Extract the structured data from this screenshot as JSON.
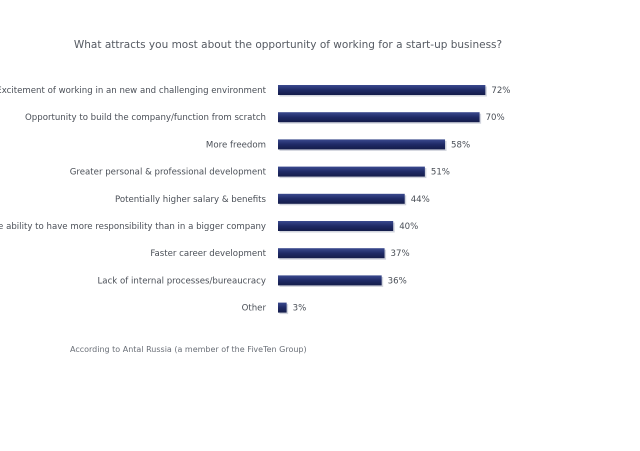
{
  "chart_data": {
    "type": "bar",
    "orientation": "horizontal",
    "title": "What attracts you most about the opportunity of working for a start-up business?",
    "categories": [
      "Excitement of working in an new and challenging environment",
      "Opportunity to build the company/function from scratch",
      "More freedom",
      "Greater personal & professional development",
      "Potentially higher salary & benefits",
      "The ability to have more responsibility than in a bigger company",
      "Faster career development",
      "Lack of internal processes/bureaucracy",
      "Other"
    ],
    "values": [
      72,
      70,
      58,
      51,
      44,
      40,
      37,
      36,
      3
    ],
    "value_labels": [
      "72%",
      "70%",
      "58%",
      "51%",
      "44%",
      "40%",
      "37%",
      "36%",
      "3%"
    ],
    "unit": "%",
    "xlim": [
      0,
      100
    ],
    "xlabel": "",
    "ylabel": "",
    "grid": false,
    "bar_color": "#1f2a66"
  },
  "source_note": "According to Antal Russia (a member of the FiveTen Group)"
}
